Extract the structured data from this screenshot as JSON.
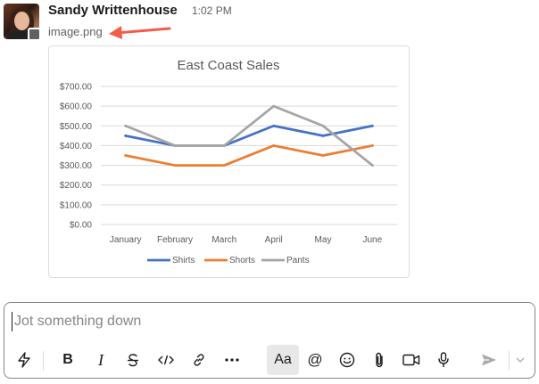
{
  "message": {
    "sender": "Sandy Writtenhouse",
    "timestamp": "1:02 PM",
    "attachment_name": "image.png"
  },
  "chart_data": {
    "type": "line",
    "title": "East Coast Sales",
    "categories": [
      "January",
      "February",
      "March",
      "April",
      "May",
      "June"
    ],
    "y_tick_labels": [
      "$700.00",
      "$600.00",
      "$500.00",
      "$400.00",
      "$300.00",
      "$200.00",
      "$100.00",
      "$0.00"
    ],
    "ylim": [
      0,
      700
    ],
    "grid": true,
    "legend_position": "bottom",
    "series": [
      {
        "name": "Shirts",
        "color": "#4472c4",
        "values": [
          450,
          400,
          400,
          500,
          450,
          500
        ]
      },
      {
        "name": "Shorts",
        "color": "#ed7d31",
        "values": [
          350,
          300,
          300,
          400,
          350,
          400
        ]
      },
      {
        "name": "Pants",
        "color": "#a5a5a5",
        "values": [
          500,
          400,
          400,
          600,
          500,
          300
        ]
      }
    ]
  },
  "composer": {
    "placeholder": "Jot something down",
    "tools": [
      {
        "name": "shortcuts-icon"
      },
      {
        "name": "bold-icon",
        "label": "B"
      },
      {
        "name": "italic-icon",
        "label": "I"
      },
      {
        "name": "strikethrough-icon"
      },
      {
        "name": "code-icon"
      },
      {
        "name": "link-icon"
      },
      {
        "name": "more-icon"
      },
      {
        "name": "formatting-icon",
        "label": "Aa"
      },
      {
        "name": "mention-icon",
        "label": "@"
      },
      {
        "name": "emoji-icon"
      },
      {
        "name": "attach-icon"
      },
      {
        "name": "video-icon"
      },
      {
        "name": "microphone-icon"
      },
      {
        "name": "send-icon"
      },
      {
        "name": "send-options-icon"
      }
    ]
  }
}
